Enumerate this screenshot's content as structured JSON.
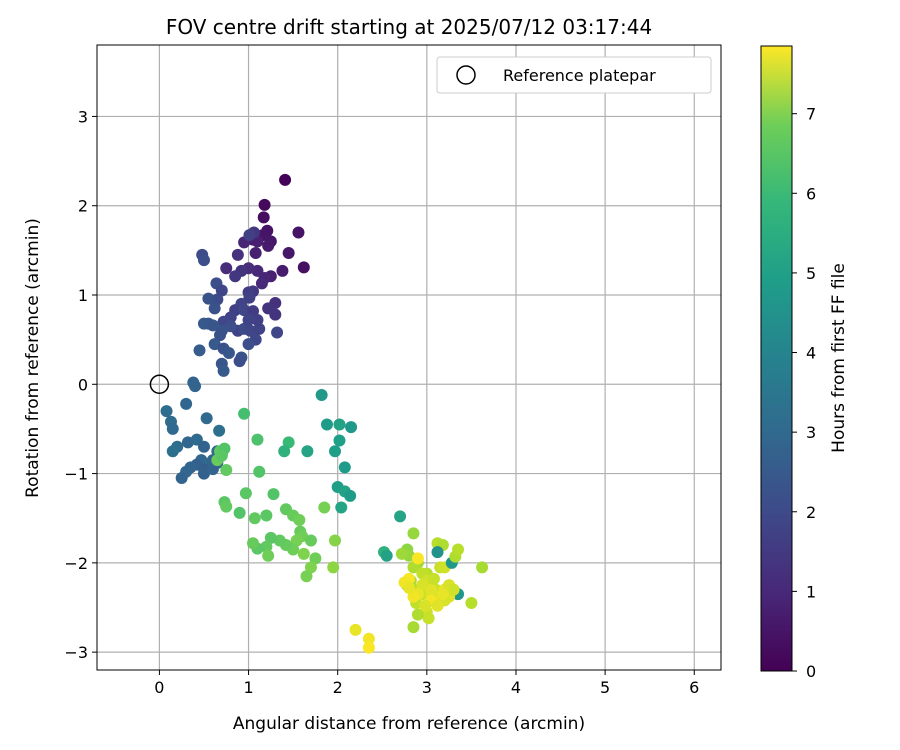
{
  "chart_data": {
    "type": "scatter",
    "title": "FOV centre drift starting at 2025/07/12 03:17:44",
    "xlabel": "Angular distance from reference (arcmin)",
    "ylabel": "Rotation from reference (arcmin)",
    "xlim": [
      -0.7,
      6.3
    ],
    "ylim": [
      -3.2,
      3.8
    ],
    "xticks": [
      0,
      1,
      2,
      3,
      4,
      5,
      6
    ],
    "yticks": [
      -3,
      -2,
      -1,
      0,
      1,
      2,
      3
    ],
    "grid": true,
    "legend": {
      "placement": "top-right",
      "entries": [
        {
          "label": "Reference platepar",
          "marker": "open-circle"
        }
      ]
    },
    "reference": {
      "x": 0,
      "y": 0
    },
    "colorbar": {
      "label": "Hours from first FF file",
      "range": [
        0,
        7.85
      ],
      "ticks": [
        0,
        1,
        2,
        3,
        4,
        5,
        6,
        7
      ],
      "colormap": "viridis"
    },
    "points": [
      [
        1.41,
        2.29,
        0.05
      ],
      [
        1.18,
        2.01,
        0.2
      ],
      [
        1.17,
        1.87,
        0.3
      ],
      [
        1.21,
        1.72,
        0.4
      ],
      [
        1.16,
        1.67,
        0.45
      ],
      [
        1.25,
        1.6,
        0.5
      ],
      [
        1.22,
        1.55,
        0.55
      ],
      [
        1.56,
        1.7,
        0.4
      ],
      [
        1.45,
        1.47,
        0.5
      ],
      [
        1.62,
        1.31,
        0.35
      ],
      [
        1.05,
        1.62,
        0.6
      ],
      [
        1.1,
        1.6,
        0.7
      ],
      [
        0.95,
        1.59,
        0.8
      ],
      [
        1.08,
        1.47,
        0.7
      ],
      [
        1.38,
        1.27,
        0.6
      ],
      [
        1.25,
        1.21,
        0.7
      ],
      [
        1.18,
        1.19,
        0.8
      ],
      [
        1.15,
        1.13,
        0.9
      ],
      [
        1.1,
        1.27,
        0.9
      ],
      [
        1.0,
        1.3,
        1.0
      ],
      [
        0.88,
        1.45,
        1.1
      ],
      [
        0.75,
        1.3,
        1.0
      ],
      [
        0.92,
        1.27,
        1.2
      ],
      [
        1.06,
        1.7,
        1.3
      ],
      [
        1.01,
        1.67,
        1.5
      ],
      [
        0.48,
        1.45,
        1.8
      ],
      [
        0.5,
        1.39,
        1.9
      ],
      [
        0.85,
        1.21,
        1.3
      ],
      [
        1.3,
        0.91,
        1.1
      ],
      [
        1.22,
        0.85,
        1.2
      ],
      [
        1.3,
        0.78,
        1.2
      ],
      [
        1.05,
        1.04,
        1.3
      ],
      [
        1.0,
        1.03,
        1.4
      ],
      [
        1.01,
        0.97,
        1.5
      ],
      [
        0.92,
        0.9,
        1.6
      ],
      [
        0.85,
        0.83,
        1.5
      ],
      [
        0.95,
        0.83,
        1.7
      ],
      [
        1.05,
        0.82,
        1.4
      ],
      [
        0.8,
        0.75,
        1.6
      ],
      [
        0.72,
        0.7,
        1.7
      ],
      [
        0.65,
        0.95,
        1.8
      ],
      [
        0.62,
        0.85,
        2.0
      ],
      [
        0.55,
        0.96,
        2.0
      ],
      [
        0.64,
        1.13,
        1.9
      ],
      [
        0.7,
        1.05,
        1.7
      ],
      [
        0.88,
        0.6,
        1.6
      ],
      [
        0.95,
        0.62,
        1.8
      ],
      [
        1.02,
        0.6,
        1.7
      ],
      [
        1.12,
        0.62,
        1.6
      ],
      [
        1.08,
        0.5,
        1.7
      ],
      [
        1.0,
        0.45,
        1.9
      ],
      [
        1.32,
        0.58,
        1.7
      ],
      [
        1.1,
        0.72,
        1.5
      ],
      [
        1.0,
        0.72,
        1.6
      ],
      [
        0.8,
        0.65,
        1.9
      ],
      [
        0.7,
        0.6,
        2.0
      ],
      [
        0.55,
        0.68,
        2.1
      ],
      [
        0.5,
        0.68,
        2.2
      ],
      [
        0.6,
        0.66,
        2.1
      ],
      [
        0.68,
        0.55,
        2.0
      ],
      [
        0.62,
        0.45,
        2.2
      ],
      [
        0.72,
        0.4,
        2.0
      ],
      [
        0.78,
        0.35,
        2.1
      ],
      [
        0.92,
        0.3,
        2.0
      ],
      [
        0.9,
        0.26,
        1.9
      ],
      [
        0.7,
        0.23,
        2.1
      ],
      [
        0.72,
        0.15,
        2.2
      ],
      [
        0.45,
        0.38,
        2.3
      ],
      [
        0.38,
        0.02,
        2.5
      ],
      [
        0.4,
        -0.02,
        2.5
      ],
      [
        0.08,
        -0.3,
        2.8
      ],
      [
        0.13,
        -0.42,
        2.8
      ],
      [
        0.15,
        -0.5,
        2.7
      ],
      [
        0.3,
        -0.22,
        2.6
      ],
      [
        0.53,
        -0.38,
        2.7
      ],
      [
        0.67,
        -0.52,
        2.9
      ],
      [
        0.32,
        -0.65,
        2.6
      ],
      [
        0.42,
        -0.62,
        2.7
      ],
      [
        0.5,
        -0.7,
        2.5
      ],
      [
        0.47,
        -0.85,
        2.6
      ],
      [
        0.55,
        -0.9,
        2.7
      ],
      [
        0.5,
        -0.95,
        2.3
      ],
      [
        0.42,
        -0.9,
        2.4
      ],
      [
        0.35,
        -0.93,
        2.5
      ],
      [
        0.3,
        -0.98,
        2.6
      ],
      [
        0.25,
        -1.05,
        2.5
      ],
      [
        0.2,
        -0.7,
        2.8
      ],
      [
        0.15,
        -0.75,
        2.9
      ],
      [
        0.6,
        -0.85,
        2.5
      ],
      [
        0.65,
        -0.75,
        2.7
      ],
      [
        0.7,
        -0.78,
        2.6
      ],
      [
        0.5,
        -1.0,
        2.4
      ],
      [
        0.6,
        -0.95,
        2.5
      ],
      [
        0.65,
        -0.88,
        2.4
      ],
      [
        0.95,
        -0.33,
        5.5
      ],
      [
        0.68,
        -0.75,
        5.9
      ],
      [
        0.65,
        -0.85,
        6.0
      ],
      [
        0.75,
        -0.96,
        5.9
      ],
      [
        0.73,
        -0.72,
        5.7
      ],
      [
        0.7,
        -0.8,
        5.8
      ],
      [
        1.1,
        -0.62,
        5.6
      ],
      [
        1.12,
        -0.98,
        5.7
      ],
      [
        0.97,
        -1.22,
        5.8
      ],
      [
        0.73,
        -1.32,
        5.8
      ],
      [
        0.75,
        -1.37,
        5.9
      ],
      [
        0.9,
        -1.44,
        5.7
      ],
      [
        1.07,
        -1.5,
        5.9
      ],
      [
        1.2,
        -1.47,
        5.8
      ],
      [
        1.28,
        -1.23,
        5.7
      ],
      [
        1.42,
        -1.4,
        5.9
      ],
      [
        1.5,
        -1.47,
        6.0
      ],
      [
        1.57,
        -1.52,
        6.1
      ],
      [
        1.58,
        -1.65,
        6.0
      ],
      [
        1.6,
        -1.7,
        6.1
      ],
      [
        1.54,
        -1.75,
        6.2
      ],
      [
        1.5,
        -1.85,
        6.1
      ],
      [
        1.42,
        -1.8,
        6.0
      ],
      [
        1.35,
        -1.75,
        5.9
      ],
      [
        1.25,
        -1.72,
        5.8
      ],
      [
        1.2,
        -1.82,
        5.9
      ],
      [
        1.1,
        -1.84,
        5.8
      ],
      [
        1.05,
        -1.78,
        6.0
      ],
      [
        1.22,
        -1.92,
        6.1
      ],
      [
        1.45,
        -0.65,
        5.3
      ],
      [
        1.4,
        -0.75,
        5.0
      ],
      [
        1.66,
        -0.75,
        4.6
      ],
      [
        1.82,
        -0.12,
        4.2
      ],
      [
        1.88,
        -0.45,
        4.3
      ],
      [
        1.97,
        -0.75,
        4.4
      ],
      [
        2.02,
        -0.45,
        4.5
      ],
      [
        2.02,
        -0.63,
        4.4
      ],
      [
        2.08,
        -0.93,
        4.3
      ],
      [
        2.15,
        -0.48,
        4.2
      ],
      [
        2.0,
        -1.15,
        4.4
      ],
      [
        2.08,
        -1.2,
        4.5
      ],
      [
        2.14,
        -1.25,
        4.3
      ],
      [
        2.04,
        -1.38,
        4.6
      ],
      [
        1.7,
        -1.75,
        6.0
      ],
      [
        1.75,
        -1.95,
        6.1
      ],
      [
        1.85,
        -1.38,
        6.2
      ],
      [
        1.7,
        -2.05,
        6.3
      ],
      [
        1.65,
        -2.15,
        6.2
      ],
      [
        1.62,
        -1.9,
        6.3
      ],
      [
        1.97,
        -1.75,
        6.4
      ],
      [
        1.95,
        -2.05,
        6.5
      ],
      [
        2.52,
        -1.88,
        5.0
      ],
      [
        2.55,
        -1.92,
        4.5
      ],
      [
        2.7,
        -1.48,
        4.6
      ],
      [
        2.78,
        -1.85,
        6.5
      ],
      [
        2.8,
        -1.92,
        6.6
      ],
      [
        2.85,
        -1.67,
        6.6
      ],
      [
        2.82,
        -2.2,
        6.8
      ],
      [
        2.72,
        -1.9,
        6.7
      ],
      [
        2.9,
        -2.0,
        6.8
      ],
      [
        2.85,
        -2.05,
        6.9
      ],
      [
        2.78,
        -2.25,
        4.8
      ],
      [
        2.9,
        -2.3,
        7.0
      ],
      [
        2.88,
        -2.45,
        7.1
      ],
      [
        2.95,
        -2.35,
        7.2
      ],
      [
        3.0,
        -2.55,
        7.3
      ],
      [
        3.02,
        -2.62,
        7.2
      ],
      [
        2.9,
        -2.58,
        6.9
      ],
      [
        2.85,
        -2.72,
        6.8
      ],
      [
        3.0,
        -2.12,
        7.0
      ],
      [
        3.05,
        -2.25,
        7.1
      ],
      [
        3.1,
        -2.3,
        7.2
      ],
      [
        3.15,
        -2.4,
        7.3
      ],
      [
        3.05,
        -2.35,
        7.4
      ],
      [
        3.1,
        -2.45,
        7.5
      ],
      [
        3.2,
        -2.3,
        7.6
      ],
      [
        3.25,
        -2.25,
        7.4
      ],
      [
        3.15,
        -2.05,
        7.2
      ],
      [
        3.2,
        -2.05,
        7.3
      ],
      [
        3.12,
        -1.78,
        7.0
      ],
      [
        3.18,
        -1.8,
        6.9
      ],
      [
        3.12,
        -1.88,
        4.0
      ],
      [
        3.28,
        -2.0,
        4.2
      ],
      [
        3.35,
        -2.35,
        4.1
      ],
      [
        3.32,
        -1.93,
        6.9
      ],
      [
        3.35,
        -1.85,
        7.0
      ],
      [
        3.5,
        -2.45,
        7.0
      ],
      [
        3.62,
        -2.05,
        6.8
      ],
      [
        2.95,
        -2.12,
        7.1
      ],
      [
        3.0,
        -2.2,
        7.3
      ],
      [
        2.95,
        -2.25,
        7.4
      ],
      [
        3.05,
        -2.3,
        7.5
      ],
      [
        2.9,
        -2.35,
        7.6
      ],
      [
        2.85,
        -2.38,
        7.7
      ],
      [
        2.8,
        -2.18,
        7.8
      ],
      [
        2.75,
        -2.22,
        7.7
      ],
      [
        2.8,
        -2.28,
        7.6
      ],
      [
        3.25,
        -2.38,
        7.5
      ],
      [
        3.2,
        -2.42,
        7.4
      ],
      [
        3.3,
        -2.3,
        7.3
      ],
      [
        2.2,
        -2.75,
        7.6
      ],
      [
        2.35,
        -2.85,
        7.7
      ],
      [
        2.35,
        -2.95,
        7.8
      ],
      [
        2.9,
        -1.95,
        7.8
      ],
      [
        3.05,
        -2.42,
        7.7
      ],
      [
        3.12,
        -2.48,
        7.5
      ],
      [
        3.18,
        -2.35,
        7.6
      ],
      [
        2.98,
        -2.48,
        7.4
      ],
      [
        3.08,
        -2.18,
        7.2
      ]
    ]
  }
}
